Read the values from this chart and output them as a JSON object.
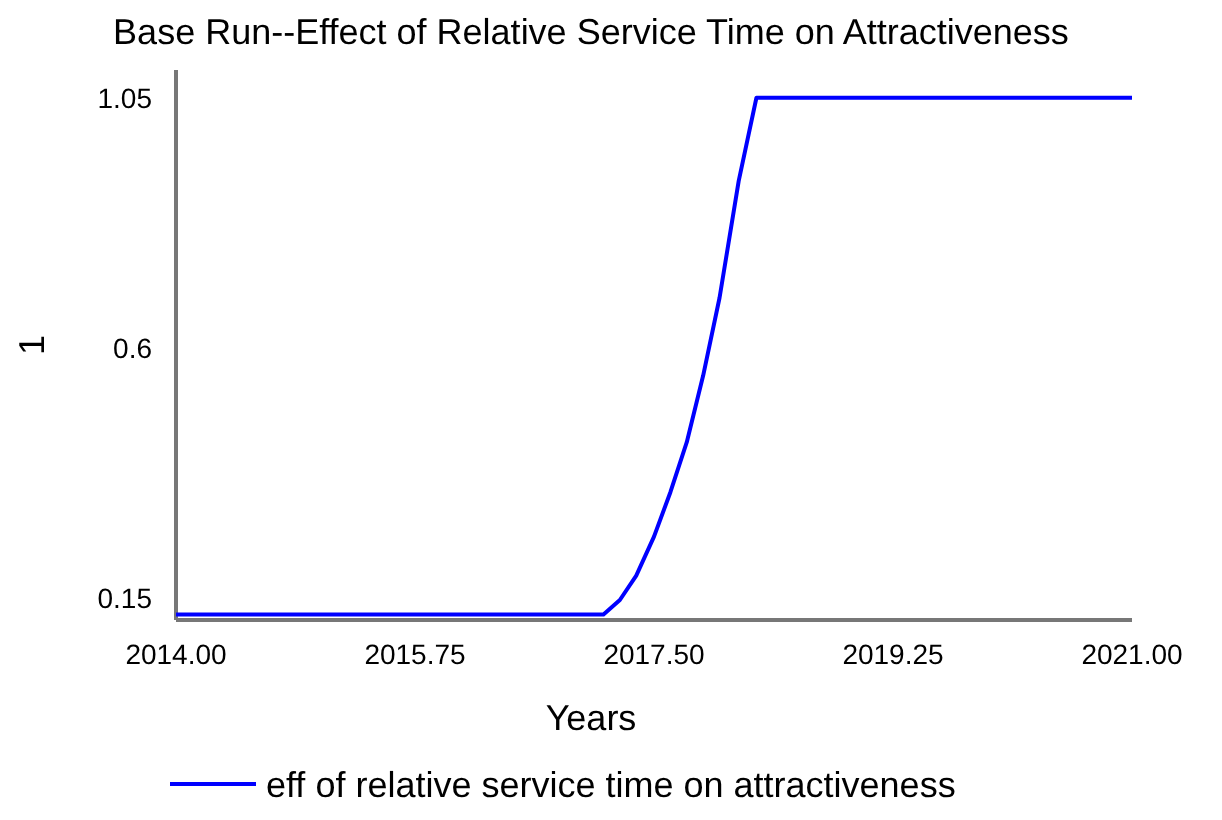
{
  "chart_data": {
    "type": "line",
    "title": "Base Run--Effect of Relative Service Time on Attractiveness",
    "xlabel": "Years",
    "ylabel": "1",
    "x": [
      2014,
      2017.13,
      2017.25,
      2017.37,
      2017.5,
      2017.62,
      2017.74,
      2017.86,
      2017.98,
      2018.12,
      2018.25,
      2021
    ],
    "series": [
      {
        "name": "eff of relative service time on attractiveness",
        "color": "#0000ff",
        "values": [
          0.12,
          0.12,
          0.146,
          0.19,
          0.26,
          0.34,
          0.43,
          0.55,
          0.69,
          0.9,
          1.05,
          1.05
        ]
      }
    ],
    "xlim": [
      2014,
      2021
    ],
    "xticks": [
      {
        "value": 2014,
        "label": "2014.00"
      },
      {
        "value": 2015.75,
        "label": "2015.75"
      },
      {
        "value": 2017.5,
        "label": "2017.50"
      },
      {
        "value": 2019.25,
        "label": "2019.25"
      },
      {
        "value": 2021,
        "label": "2021.00"
      }
    ],
    "ylim": [
      0.11,
      1.1
    ],
    "yticks": [
      0.15,
      0.6,
      1.05
    ],
    "grid": false,
    "legend": "bottom",
    "marker": "none",
    "line_style": "solid"
  }
}
